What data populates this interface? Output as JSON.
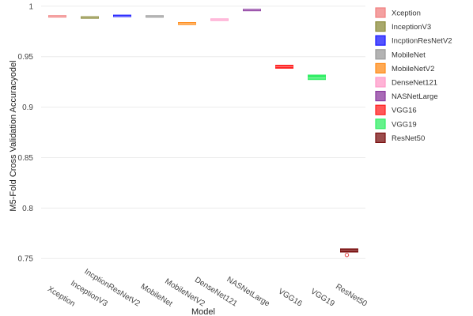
{
  "chart_data": {
    "type": "box",
    "title": "",
    "xlabel": "Model",
    "ylabel": "M5-Fold Cross Validation Accuracyodel",
    "ylim": [
      0.74,
      1.003
    ],
    "yticks": [
      "0.75",
      "0.8",
      "0.85",
      "0.9",
      "0.95",
      "1"
    ],
    "grid": true,
    "legend_position": "right",
    "categories": [
      "Xception",
      "InceptionV3",
      "IncptionResNetV2",
      "MobileNet",
      "MobileNetV2",
      "DenseNet121",
      "NASNetLarge",
      "VGG16",
      "VGG19",
      "ResNet50"
    ],
    "legend_entries": [
      "Xception",
      "InceptionV3",
      "IncptionResNetV2",
      "MobileNet",
      "MobileNetV2",
      "DenseNet121",
      "NASNetLarge",
      "VGG16",
      "VGG19",
      "ResNet50"
    ],
    "series": [
      {
        "category": "Xception",
        "q1": 0.9893,
        "median": 0.9899,
        "q3": 0.9905,
        "color": "#f08080"
      },
      {
        "category": "InceptionV3",
        "q1": 0.9882,
        "median": 0.9888,
        "q3": 0.9894,
        "color": "#8b8b3a"
      },
      {
        "category": "IncptionResNetV2",
        "q1": 0.9897,
        "median": 0.9903,
        "q3": 0.9911,
        "color": "#1a1aff"
      },
      {
        "category": "MobileNet",
        "q1": 0.9892,
        "median": 0.9899,
        "q3": 0.9905,
        "color": "#9a9a9a"
      },
      {
        "category": "MobileNetV2",
        "q1": 0.9818,
        "median": 0.9828,
        "q3": 0.9838,
        "color": "#ff8c1a"
      },
      {
        "category": "DenseNet121",
        "q1": 0.9859,
        "median": 0.9867,
        "q3": 0.9874,
        "color": "#ff99c8"
      },
      {
        "category": "NASNetLarge",
        "q1": 0.9956,
        "median": 0.9962,
        "q3": 0.9968,
        "color": "#8b3a9e"
      },
      {
        "category": "VGG16",
        "q1": 0.9385,
        "median": 0.94,
        "q3": 0.9415,
        "color": "#ff2020"
      },
      {
        "category": "VGG19",
        "q1": 0.9273,
        "median": 0.9288,
        "q3": 0.9318,
        "color": "#33ee66"
      },
      {
        "category": "ResNet50",
        "q1": 0.7564,
        "median": 0.758,
        "q3": 0.7596,
        "color": "#7a1010",
        "outliers": [
          0.7535
        ]
      }
    ]
  }
}
